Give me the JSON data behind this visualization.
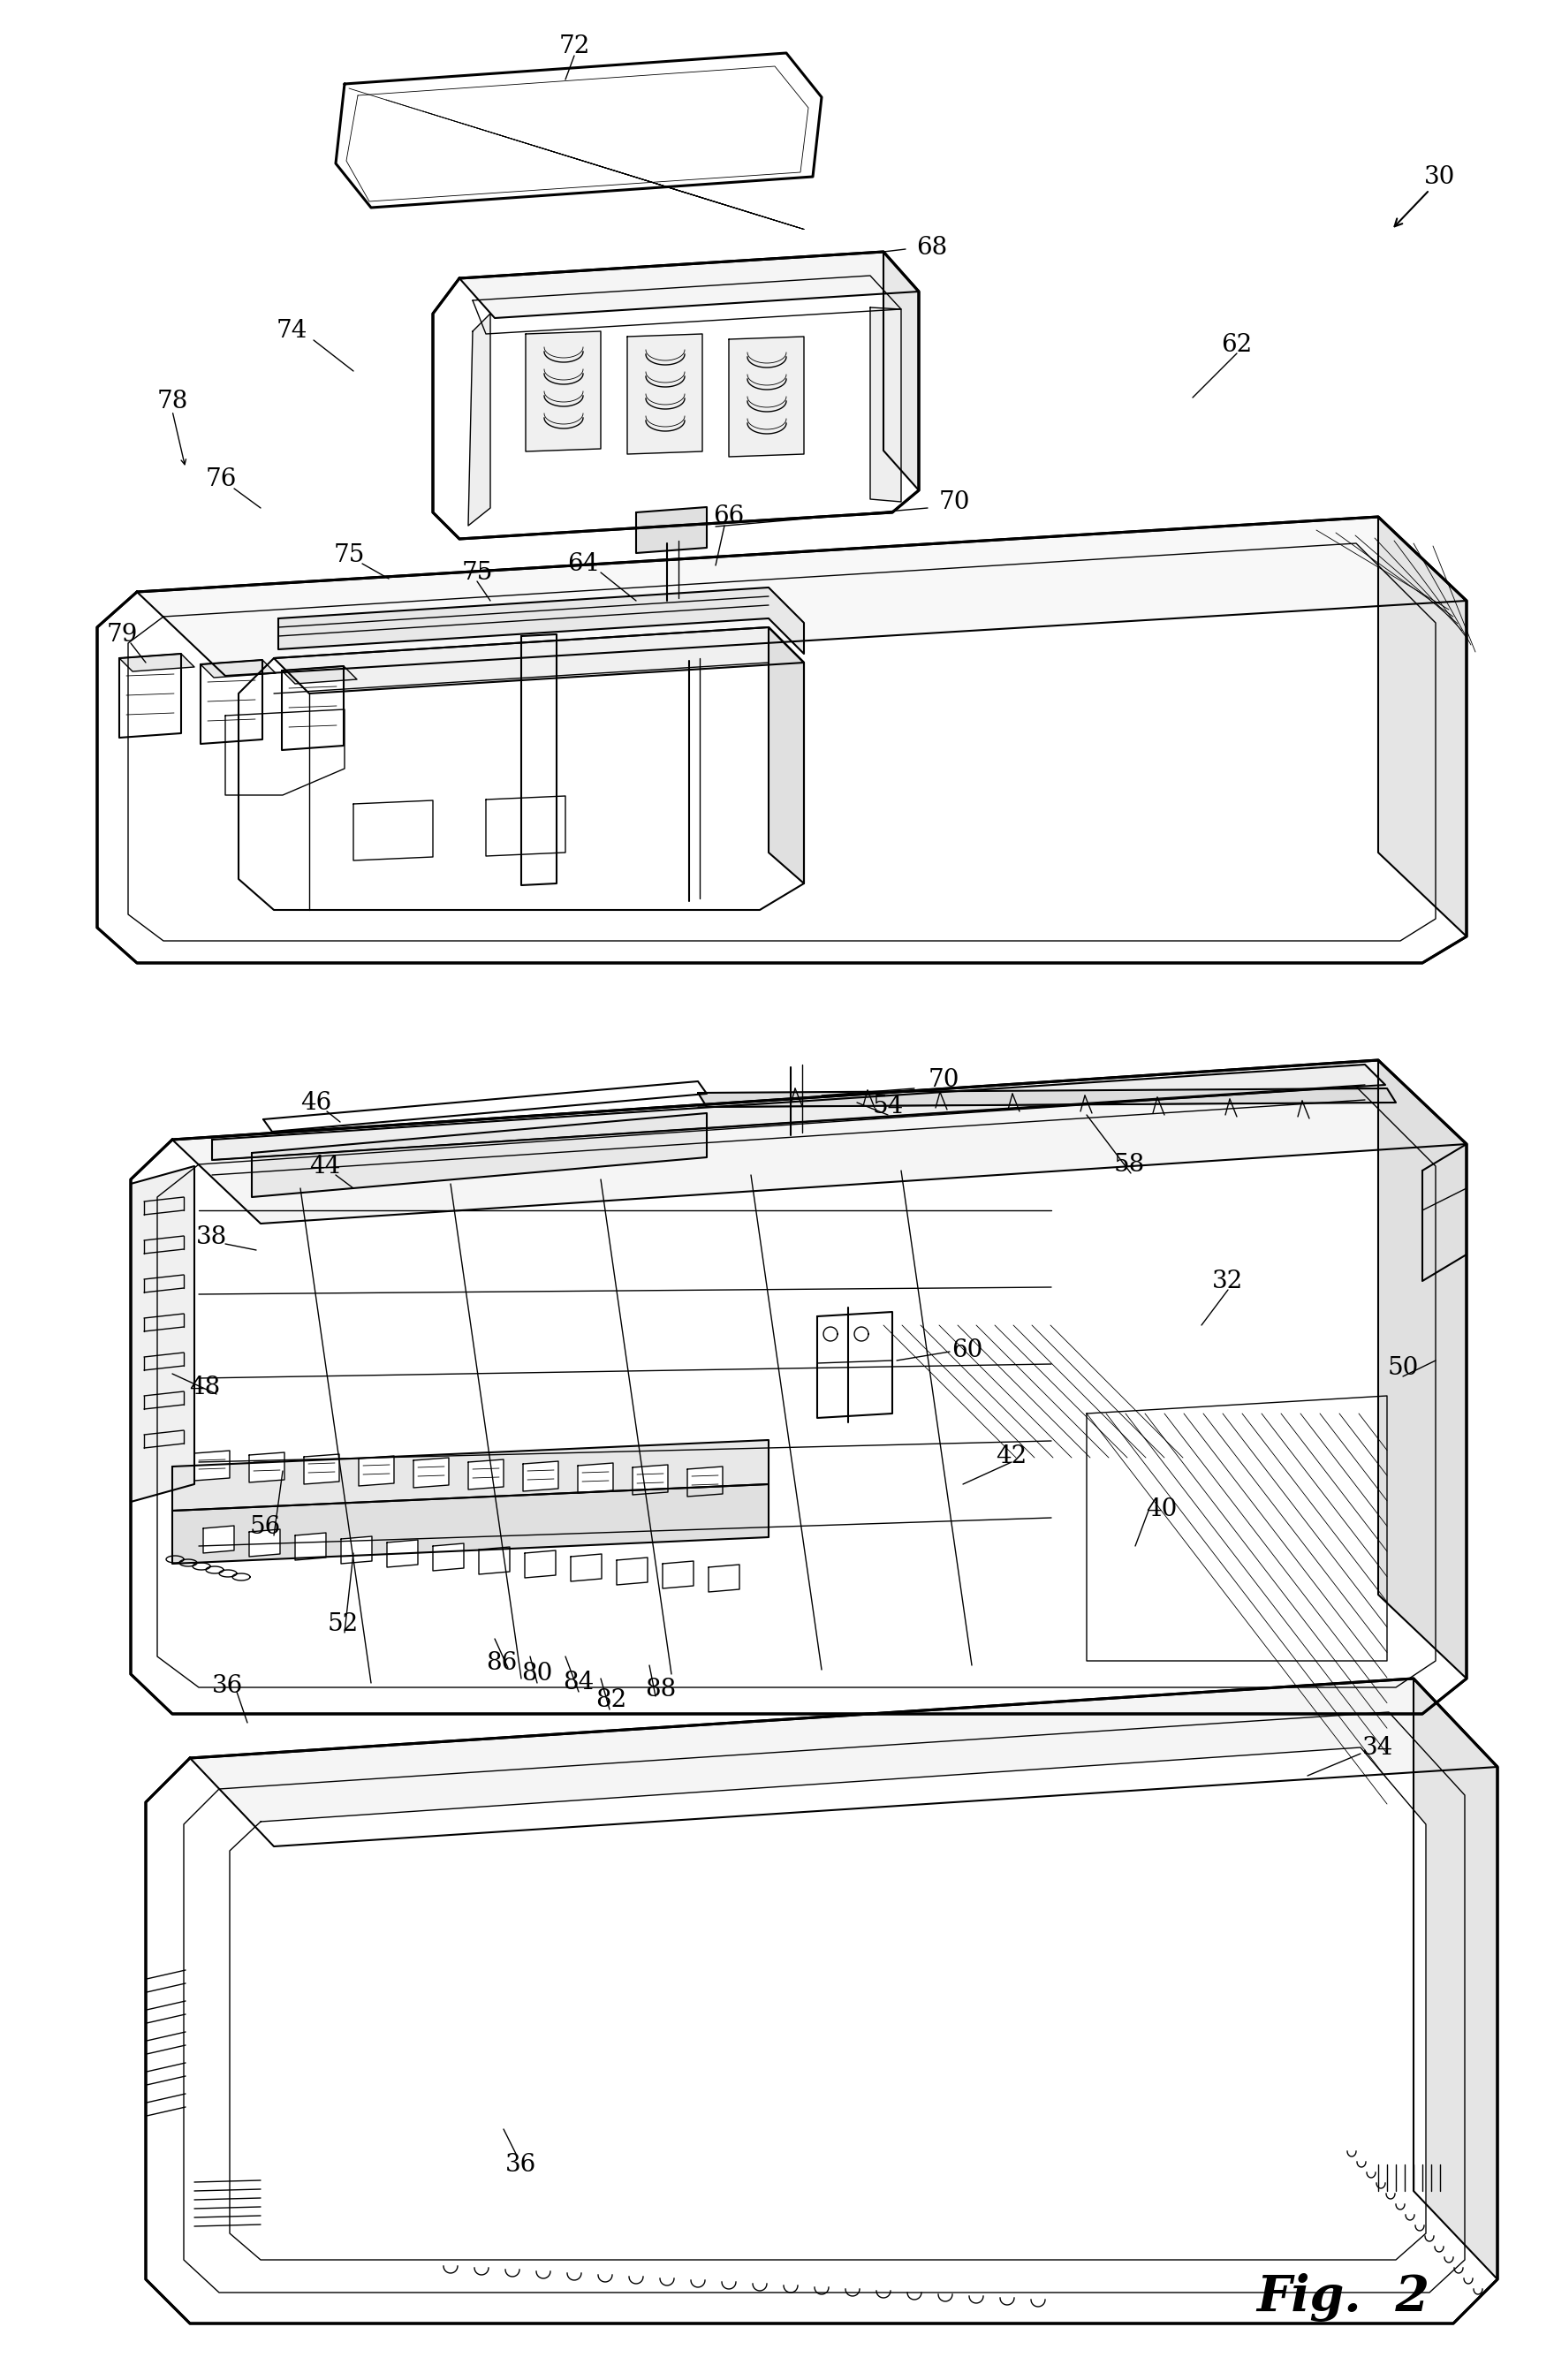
{
  "fig_label": "Fig.  2",
  "background_color": "#ffffff",
  "line_color": "#000000",
  "lw_thick": 2.2,
  "lw_med": 1.5,
  "lw_thin": 1.0,
  "lw_hair": 0.6,
  "label_fs": 20,
  "fig_label_fs": 40
}
